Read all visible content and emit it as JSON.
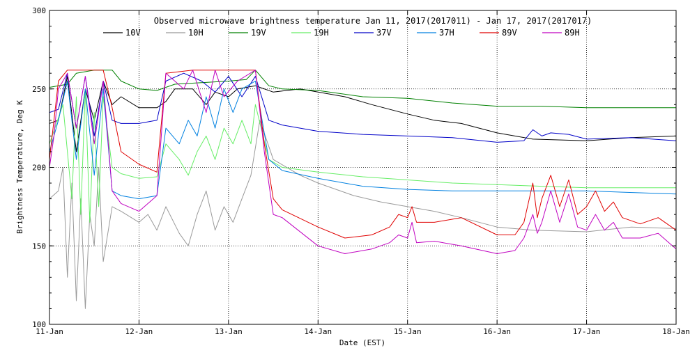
{
  "chart_data": {
    "type": "line",
    "title": "Observed microwave brightness temperature Jan 11, 2017(2017011) - Jan 17, 2017(2017017)",
    "xlabel": "Date (EST)",
    "ylabel": "Brightness Temperature, Deg K",
    "xlim": [
      0,
      7
    ],
    "ylim": [
      100,
      300
    ],
    "x_ticks": [
      {
        "x": 0,
        "label": "11-Jan"
      },
      {
        "x": 1,
        "label": "12-Jan"
      },
      {
        "x": 2,
        "label": "13-Jan"
      },
      {
        "x": 3,
        "label": "14-Jan"
      },
      {
        "x": 4,
        "label": "15-Jan"
      },
      {
        "x": 5,
        "label": "16-Jan"
      },
      {
        "x": 6,
        "label": "17-Jan"
      },
      {
        "x": 7,
        "label": "18-Jan"
      }
    ],
    "y_ticks": [
      {
        "y": 100,
        "label": "100"
      },
      {
        "y": 150,
        "label": "150"
      },
      {
        "y": 200,
        "label": "200"
      },
      {
        "y": 250,
        "label": "250"
      },
      {
        "y": 300,
        "label": "300"
      }
    ],
    "grid": true,
    "legend_position": "top",
    "series": [
      {
        "name": "10V",
        "color": "#000000",
        "points": [
          [
            0,
            228
          ],
          [
            0.1,
            230
          ],
          [
            0.2,
            258
          ],
          [
            0.3,
            210
          ],
          [
            0.4,
            250
          ],
          [
            0.5,
            230
          ],
          [
            0.6,
            255
          ],
          [
            0.7,
            240
          ],
          [
            0.8,
            245
          ],
          [
            1.0,
            238
          ],
          [
            1.2,
            238
          ],
          [
            1.3,
            242
          ],
          [
            1.4,
            250
          ],
          [
            1.6,
            250
          ],
          [
            1.75,
            240
          ],
          [
            1.85,
            248
          ],
          [
            2.0,
            245
          ],
          [
            2.1,
            250
          ],
          [
            2.3,
            252
          ],
          [
            2.5,
            248
          ],
          [
            2.8,
            250
          ],
          [
            3.0,
            248
          ],
          [
            3.3,
            245
          ],
          [
            3.6,
            240
          ],
          [
            4.0,
            234
          ],
          [
            4.3,
            230
          ],
          [
            4.6,
            228
          ],
          [
            5.0,
            222
          ],
          [
            5.4,
            218
          ],
          [
            6.0,
            217
          ],
          [
            6.5,
            219
          ],
          [
            7.0,
            220
          ]
        ]
      },
      {
        "name": "10H",
        "color": "#999999",
        "points": [
          [
            0,
            180
          ],
          [
            0.1,
            185
          ],
          [
            0.15,
            200
          ],
          [
            0.2,
            130
          ],
          [
            0.25,
            190
          ],
          [
            0.3,
            115
          ],
          [
            0.35,
            180
          ],
          [
            0.4,
            110
          ],
          [
            0.45,
            170
          ],
          [
            0.5,
            150
          ],
          [
            0.55,
            200
          ],
          [
            0.6,
            140
          ],
          [
            0.7,
            175
          ],
          [
            0.8,
            172
          ],
          [
            1.0,
            165
          ],
          [
            1.1,
            170
          ],
          [
            1.2,
            160
          ],
          [
            1.3,
            175
          ],
          [
            1.45,
            158
          ],
          [
            1.55,
            150
          ],
          [
            1.65,
            170
          ],
          [
            1.75,
            185
          ],
          [
            1.85,
            160
          ],
          [
            1.95,
            175
          ],
          [
            2.05,
            165
          ],
          [
            2.15,
            180
          ],
          [
            2.25,
            195
          ],
          [
            2.35,
            230
          ],
          [
            2.5,
            205
          ],
          [
            2.8,
            195
          ],
          [
            3.0,
            190
          ],
          [
            3.4,
            182
          ],
          [
            3.7,
            178
          ],
          [
            4.0,
            175
          ],
          [
            4.3,
            172
          ],
          [
            4.6,
            168
          ],
          [
            5.0,
            162
          ],
          [
            5.4,
            160
          ],
          [
            6.0,
            159
          ],
          [
            6.5,
            162
          ],
          [
            7.0,
            161
          ]
        ]
      },
      {
        "name": "19V",
        "color": "#008000",
        "points": [
          [
            0,
            251
          ],
          [
            0.2,
            253
          ],
          [
            0.3,
            260
          ],
          [
            0.5,
            262
          ],
          [
            0.7,
            262
          ],
          [
            0.8,
            255
          ],
          [
            1.0,
            250
          ],
          [
            1.2,
            249
          ],
          [
            1.4,
            253
          ],
          [
            1.7,
            254
          ],
          [
            2.0,
            255
          ],
          [
            2.2,
            256
          ],
          [
            2.3,
            262
          ],
          [
            2.45,
            252
          ],
          [
            2.6,
            250
          ],
          [
            3.0,
            249
          ],
          [
            3.5,
            245
          ],
          [
            4.0,
            244
          ],
          [
            4.5,
            241
          ],
          [
            5.0,
            239
          ],
          [
            5.5,
            239
          ],
          [
            6.0,
            238
          ],
          [
            7.0,
            238
          ]
        ]
      },
      {
        "name": "19H",
        "color": "#66ee66",
        "points": [
          [
            0,
            215
          ],
          [
            0.15,
            240
          ],
          [
            0.25,
            180
          ],
          [
            0.3,
            245
          ],
          [
            0.35,
            170
          ],
          [
            0.4,
            250
          ],
          [
            0.45,
            165
          ],
          [
            0.5,
            235
          ],
          [
            0.55,
            175
          ],
          [
            0.6,
            245
          ],
          [
            0.7,
            200
          ],
          [
            0.8,
            196
          ],
          [
            1.0,
            193
          ],
          [
            1.2,
            194
          ],
          [
            1.3,
            215
          ],
          [
            1.45,
            205
          ],
          [
            1.55,
            195
          ],
          [
            1.65,
            210
          ],
          [
            1.75,
            220
          ],
          [
            1.85,
            205
          ],
          [
            1.95,
            225
          ],
          [
            2.05,
            215
          ],
          [
            2.15,
            230
          ],
          [
            2.25,
            215
          ],
          [
            2.3,
            240
          ],
          [
            2.45,
            205
          ],
          [
            2.6,
            200
          ],
          [
            3.0,
            197
          ],
          [
            3.5,
            194
          ],
          [
            4.0,
            192
          ],
          [
            4.5,
            190
          ],
          [
            5.0,
            189
          ],
          [
            5.5,
            188
          ],
          [
            6.0,
            187
          ],
          [
            7.0,
            187
          ]
        ]
      },
      {
        "name": "37V",
        "color": "#0000c8",
        "points": [
          [
            0,
            235
          ],
          [
            0.1,
            237
          ],
          [
            0.2,
            260
          ],
          [
            0.3,
            225
          ],
          [
            0.4,
            258
          ],
          [
            0.5,
            220
          ],
          [
            0.6,
            255
          ],
          [
            0.7,
            230
          ],
          [
            0.8,
            228
          ],
          [
            1.0,
            228
          ],
          [
            1.2,
            230
          ],
          [
            1.3,
            255
          ],
          [
            1.5,
            260
          ],
          [
            1.7,
            255
          ],
          [
            1.85,
            248
          ],
          [
            2.0,
            258
          ],
          [
            2.15,
            245
          ],
          [
            2.3,
            258
          ],
          [
            2.45,
            230
          ],
          [
            2.6,
            227
          ],
          [
            3.0,
            223
          ],
          [
            3.5,
            221
          ],
          [
            4.0,
            220
          ],
          [
            4.5,
            219
          ],
          [
            5.0,
            216
          ],
          [
            5.3,
            217
          ],
          [
            5.4,
            224
          ],
          [
            5.5,
            220
          ],
          [
            5.6,
            222
          ],
          [
            5.8,
            221
          ],
          [
            6.0,
            218
          ],
          [
            6.5,
            219
          ],
          [
            7.0,
            217
          ]
        ]
      },
      {
        "name": "37H",
        "color": "#0080e0",
        "points": [
          [
            0,
            210
          ],
          [
            0.1,
            230
          ],
          [
            0.2,
            255
          ],
          [
            0.3,
            205
          ],
          [
            0.4,
            250
          ],
          [
            0.5,
            195
          ],
          [
            0.6,
            250
          ],
          [
            0.7,
            185
          ],
          [
            0.8,
            182
          ],
          [
            1.0,
            180
          ],
          [
            1.2,
            182
          ],
          [
            1.3,
            225
          ],
          [
            1.45,
            215
          ],
          [
            1.55,
            230
          ],
          [
            1.65,
            220
          ],
          [
            1.75,
            245
          ],
          [
            1.85,
            225
          ],
          [
            1.95,
            250
          ],
          [
            2.05,
            235
          ],
          [
            2.15,
            250
          ],
          [
            2.3,
            255
          ],
          [
            2.45,
            205
          ],
          [
            2.6,
            198
          ],
          [
            3.0,
            193
          ],
          [
            3.5,
            188
          ],
          [
            4.0,
            186
          ],
          [
            4.5,
            185
          ],
          [
            5.0,
            185
          ],
          [
            5.5,
            185
          ],
          [
            6.0,
            185
          ],
          [
            7.0,
            183
          ]
        ]
      },
      {
        "name": "89V",
        "color": "#e00000",
        "points": [
          [
            0,
            205
          ],
          [
            0.05,
            230
          ],
          [
            0.1,
            255
          ],
          [
            0.2,
            262
          ],
          [
            0.4,
            262
          ],
          [
            0.6,
            262
          ],
          [
            0.7,
            238
          ],
          [
            0.8,
            210
          ],
          [
            1.0,
            202
          ],
          [
            1.2,
            197
          ],
          [
            1.3,
            260
          ],
          [
            1.6,
            262
          ],
          [
            1.9,
            262
          ],
          [
            2.1,
            262
          ],
          [
            2.3,
            262
          ],
          [
            2.4,
            215
          ],
          [
            2.5,
            180
          ],
          [
            2.6,
            173
          ],
          [
            3.0,
            162
          ],
          [
            3.3,
            155
          ],
          [
            3.6,
            157
          ],
          [
            3.8,
            162
          ],
          [
            3.9,
            170
          ],
          [
            4.0,
            168
          ],
          [
            4.05,
            175
          ],
          [
            4.1,
            165
          ],
          [
            4.3,
            165
          ],
          [
            4.6,
            168
          ],
          [
            5.0,
            157
          ],
          [
            5.2,
            157
          ],
          [
            5.3,
            165
          ],
          [
            5.4,
            190
          ],
          [
            5.45,
            168
          ],
          [
            5.5,
            180
          ],
          [
            5.6,
            195
          ],
          [
            5.7,
            175
          ],
          [
            5.8,
            192
          ],
          [
            5.9,
            170
          ],
          [
            6.0,
            175
          ],
          [
            6.1,
            185
          ],
          [
            6.2,
            172
          ],
          [
            6.3,
            178
          ],
          [
            6.4,
            168
          ],
          [
            6.6,
            164
          ],
          [
            6.8,
            168
          ],
          [
            7.0,
            160
          ]
        ]
      },
      {
        "name": "89H",
        "color": "#c000c0",
        "points": [
          [
            0,
            200
          ],
          [
            0.05,
            220
          ],
          [
            0.1,
            250
          ],
          [
            0.2,
            260
          ],
          [
            0.3,
            225
          ],
          [
            0.4,
            258
          ],
          [
            0.5,
            215
          ],
          [
            0.6,
            255
          ],
          [
            0.7,
            185
          ],
          [
            0.8,
            177
          ],
          [
            1.0,
            172
          ],
          [
            1.2,
            182
          ],
          [
            1.3,
            260
          ],
          [
            1.5,
            250
          ],
          [
            1.6,
            262
          ],
          [
            1.75,
            235
          ],
          [
            1.85,
            262
          ],
          [
            1.95,
            245
          ],
          [
            2.1,
            255
          ],
          [
            2.3,
            262
          ],
          [
            2.4,
            210
          ],
          [
            2.5,
            170
          ],
          [
            2.6,
            168
          ],
          [
            3.0,
            150
          ],
          [
            3.3,
            145
          ],
          [
            3.6,
            148
          ],
          [
            3.8,
            152
          ],
          [
            3.9,
            157
          ],
          [
            4.0,
            155
          ],
          [
            4.05,
            165
          ],
          [
            4.1,
            152
          ],
          [
            4.3,
            153
          ],
          [
            4.6,
            150
          ],
          [
            5.0,
            145
          ],
          [
            5.2,
            147
          ],
          [
            5.3,
            155
          ],
          [
            5.4,
            170
          ],
          [
            5.45,
            158
          ],
          [
            5.5,
            165
          ],
          [
            5.6,
            185
          ],
          [
            5.7,
            165
          ],
          [
            5.8,
            183
          ],
          [
            5.9,
            162
          ],
          [
            6.0,
            160
          ],
          [
            6.1,
            170
          ],
          [
            6.2,
            160
          ],
          [
            6.3,
            165
          ],
          [
            6.4,
            155
          ],
          [
            6.6,
            155
          ],
          [
            6.8,
            158
          ],
          [
            7.0,
            148
          ]
        ]
      }
    ]
  }
}
